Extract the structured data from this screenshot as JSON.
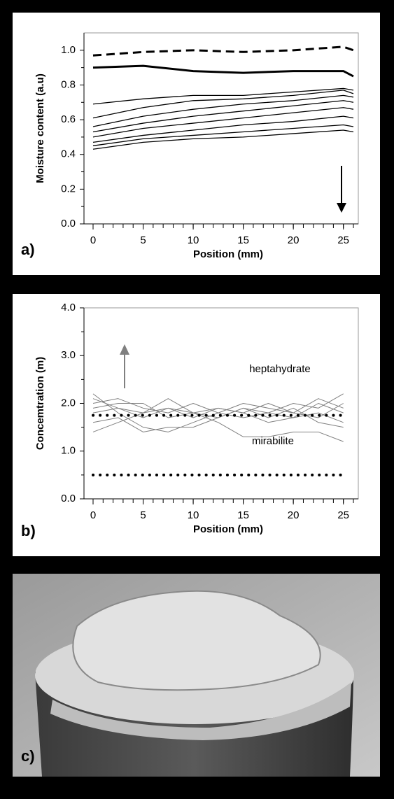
{
  "chart_data": [
    {
      "type": "line",
      "panel_label": "a)",
      "xlabel": "Position (mm)",
      "ylabel": "Moisture content (a.u)",
      "x": [
        0,
        5,
        10,
        15,
        20,
        25,
        26
      ],
      "xlim": [
        0,
        26
      ],
      "xticks": [
        0,
        5,
        10,
        15,
        20,
        25
      ],
      "ylim": [
        0,
        1.1
      ],
      "yticks": [
        {
          "value": 0,
          "label": "0.0"
        },
        {
          "value": 0.2,
          "label": "0.2"
        },
        {
          "value": 0.4,
          "label": "0.4"
        },
        {
          "value": 0.6,
          "label": "0.6"
        },
        {
          "value": 0.8,
          "label": "0.8"
        },
        {
          "value": 1,
          "label": "1.0"
        }
      ],
      "series": [
        {
          "color": "#000000",
          "style": "dashed",
          "width": 3,
          "values": [
            0.97,
            0.99,
            1.0,
            0.99,
            1.0,
            1.02,
            1.0
          ]
        },
        {
          "color": "#000000",
          "style": "solid",
          "width": 3,
          "values": [
            0.9,
            0.91,
            0.88,
            0.87,
            0.88,
            0.88,
            0.85
          ]
        },
        {
          "color": "#000000",
          "style": "solid",
          "width": 1.3,
          "values": [
            0.69,
            0.72,
            0.74,
            0.74,
            0.76,
            0.78,
            0.77
          ]
        },
        {
          "color": "#000000",
          "style": "solid",
          "width": 1.3,
          "values": [
            0.61,
            0.67,
            0.71,
            0.72,
            0.74,
            0.77,
            0.75
          ]
        },
        {
          "color": "#000000",
          "style": "solid",
          "width": 1.3,
          "values": [
            0.56,
            0.62,
            0.66,
            0.69,
            0.71,
            0.74,
            0.73
          ]
        },
        {
          "color": "#000000",
          "style": "solid",
          "width": 1.3,
          "values": [
            0.53,
            0.58,
            0.62,
            0.65,
            0.68,
            0.71,
            0.7
          ]
        },
        {
          "color": "#000000",
          "style": "solid",
          "width": 1.3,
          "values": [
            0.5,
            0.55,
            0.58,
            0.61,
            0.64,
            0.67,
            0.66
          ]
        },
        {
          "color": "#000000",
          "style": "solid",
          "width": 1.3,
          "values": [
            0.47,
            0.51,
            0.54,
            0.57,
            0.59,
            0.62,
            0.61
          ]
        },
        {
          "color": "#000000",
          "style": "solid",
          "width": 1.3,
          "values": [
            0.45,
            0.49,
            0.51,
            0.53,
            0.55,
            0.57,
            0.56
          ]
        },
        {
          "color": "#000000",
          "style": "solid",
          "width": 1.3,
          "values": [
            0.43,
            0.47,
            0.49,
            0.5,
            0.52,
            0.54,
            0.53
          ]
        }
      ],
      "arrow_color": "#000000"
    },
    {
      "type": "line",
      "panel_label": "b)",
      "xlabel": "Position (mm)",
      "ylabel": "Concemtration (m)",
      "x": [
        0,
        2.5,
        5,
        7.5,
        10,
        12.5,
        15,
        17.5,
        20,
        22.5,
        25
      ],
      "xlim": [
        0,
        26
      ],
      "xticks": [
        0,
        5,
        10,
        15,
        20,
        25
      ],
      "ylim": [
        0,
        4
      ],
      "yticks": [
        {
          "value": 0,
          "label": "0.0"
        },
        {
          "value": 1,
          "label": "1.0"
        },
        {
          "value": 2,
          "label": "2.0"
        },
        {
          "value": 3,
          "label": "3.0"
        },
        {
          "value": 4,
          "label": "4.0"
        }
      ],
      "annotations": [
        "heptahydrate",
        "mirabilite"
      ],
      "series": [
        {
          "color": "#808080",
          "style": "solid",
          "width": 1,
          "values": [
            2.1,
            1.9,
            1.8,
            2.1,
            1.8,
            1.7,
            1.9,
            1.8,
            2.0,
            1.9,
            2.2
          ]
        },
        {
          "color": "#808080",
          "style": "solid",
          "width": 1,
          "values": [
            2.2,
            1.8,
            1.5,
            1.4,
            1.6,
            1.8,
            1.7,
            1.8,
            1.7,
            2.0,
            1.8
          ]
        },
        {
          "color": "#808080",
          "style": "solid",
          "width": 1,
          "values": [
            1.9,
            2.0,
            2.0,
            1.7,
            1.8,
            1.6,
            1.3,
            1.3,
            1.4,
            1.4,
            1.2
          ]
        },
        {
          "color": "#808080",
          "style": "solid",
          "width": 1,
          "values": [
            1.4,
            1.6,
            1.8,
            1.9,
            1.7,
            1.9,
            1.8,
            1.6,
            1.7,
            1.8,
            1.6
          ]
        },
        {
          "color": "#808080",
          "style": "solid",
          "width": 1,
          "values": [
            2.0,
            2.1,
            1.9,
            1.8,
            2.0,
            1.8,
            2.0,
            1.9,
            1.8,
            2.1,
            1.9
          ]
        },
        {
          "color": "#808080",
          "style": "solid",
          "width": 1,
          "values": [
            1.6,
            1.7,
            1.4,
            1.5,
            1.5,
            1.7,
            1.9,
            1.7,
            1.9,
            1.6,
            1.5
          ]
        },
        {
          "color": "#808080",
          "style": "solid",
          "width": 1,
          "values": [
            1.8,
            1.9,
            1.7,
            1.9,
            1.8,
            1.9,
            1.8,
            2.0,
            1.8,
            1.7,
            2.0
          ]
        },
        {
          "color": "#000000",
          "style": "dotted",
          "width": 4,
          "values": [
            1.75,
            1.75,
            1.75,
            1.75,
            1.75,
            1.75,
            1.75,
            1.75,
            1.75,
            1.75,
            1.75
          ]
        },
        {
          "color": "#000000",
          "style": "dotted",
          "width": 4,
          "values": [
            0.5,
            0.5,
            0.5,
            0.5,
            0.5,
            0.5,
            0.5,
            0.5,
            0.5,
            0.5,
            0.5
          ]
        }
      ],
      "arrow_color": "#808080"
    }
  ],
  "photo": {
    "panel_label": "c)"
  }
}
